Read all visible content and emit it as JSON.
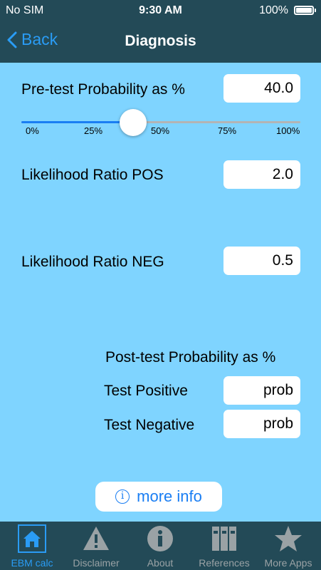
{
  "status_bar": {
    "carrier": "No SIM",
    "time": "9:30 AM",
    "battery": "100%"
  },
  "nav": {
    "back_label": "Back",
    "title": "Diagnosis"
  },
  "pretest": {
    "label": "Pre-test Probability as %",
    "value": "40.0",
    "slider_level": 0.4,
    "ticks": [
      "0%",
      "25%",
      "50%",
      "75%",
      "100%"
    ]
  },
  "lr_pos": {
    "label": "Likelihood Ratio POS",
    "value": "2.0"
  },
  "lr_neg": {
    "label": "Likelihood Ratio NEG",
    "value": "0.5"
  },
  "post": {
    "heading": "Post-test Probability as %",
    "positive_label": "Test Positive",
    "positive_value": "prob",
    "negative_label": "Test Negative",
    "negative_value": "prob"
  },
  "more_info_label": "more info",
  "tabs": [
    {
      "label": "EBM calc",
      "icon": "house-icon",
      "active": true
    },
    {
      "label": "Disclaimer",
      "icon": "warning-icon",
      "active": false
    },
    {
      "label": "About",
      "icon": "info-icon",
      "active": false
    },
    {
      "label": "References",
      "icon": "binders-icon",
      "active": false
    },
    {
      "label": "More Apps",
      "icon": "star-icon",
      "active": false
    }
  ],
  "colors": {
    "background": "#7fd4ff",
    "bar": "#234a57",
    "accent": "#2a9cf5"
  }
}
